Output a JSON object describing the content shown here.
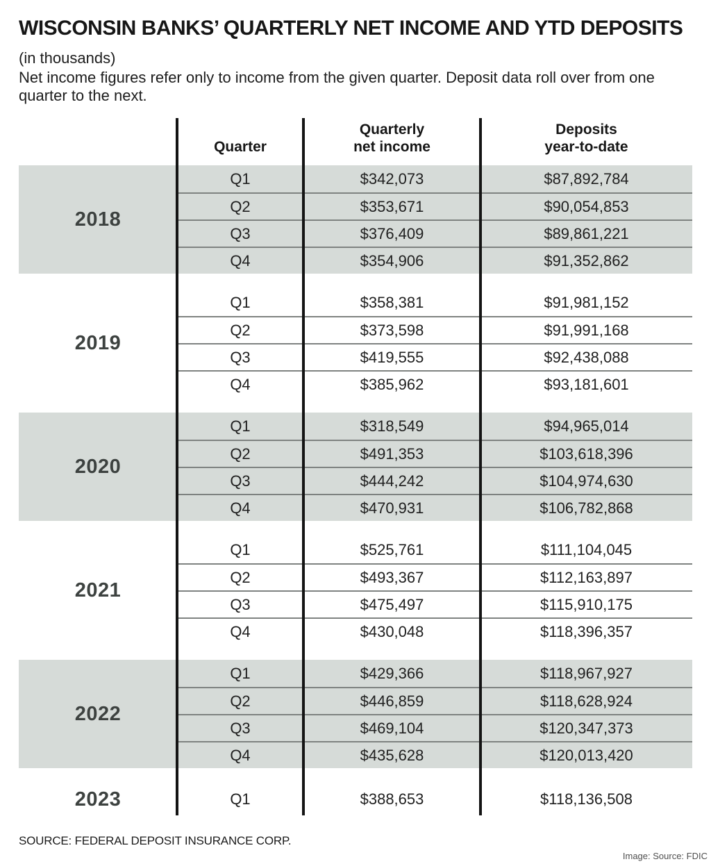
{
  "title": "WISCONSIN BANKS’ QUARTERLY NET INCOME AND YTD DEPOSITS",
  "units_note": "(in thousands)",
  "description": "Net income figures refer only to income from the given quarter. Deposit data roll over from one quarter to the next.",
  "source_note": "SOURCE: FEDERAL DEPOSIT INSURANCE CORP.",
  "image_credit": "Image: Source: FDIC",
  "colors": {
    "shade": "#d6dbd8",
    "divider": "#141414",
    "row_separator": "#7e8280",
    "year_text": "#3d4240"
  },
  "header": {
    "quarter": "Quarter",
    "net_income_line1": "Quarterly",
    "net_income_line2": "net income",
    "deposits_line1": "Deposits",
    "deposits_line2": "year-to-date"
  },
  "chart_data": {
    "type": "table",
    "title": "WISCONSIN BANKS’ QUARTERLY NET INCOME AND YTD DEPOSITS",
    "units": "in thousands",
    "columns": [
      "Quarter",
      "Quarterly net income",
      "Deposits year-to-date"
    ],
    "layout": {
      "shaded_years": [
        "2018",
        "2020",
        "2022"
      ],
      "unshaded_years": [
        "2019",
        "2021",
        "2023"
      ]
    },
    "groups": [
      {
        "year": "2018",
        "rows": [
          {
            "quarter": "Q1",
            "net_income": "$342,073",
            "deposits_ytd": "$87,892,784"
          },
          {
            "quarter": "Q2",
            "net_income": "$353,671",
            "deposits_ytd": "$90,054,853"
          },
          {
            "quarter": "Q3",
            "net_income": "$376,409",
            "deposits_ytd": "$89,861,221"
          },
          {
            "quarter": "Q4",
            "net_income": "$354,906",
            "deposits_ytd": "$91,352,862"
          }
        ]
      },
      {
        "year": "2019",
        "rows": [
          {
            "quarter": "Q1",
            "net_income": "$358,381",
            "deposits_ytd": "$91,981,152"
          },
          {
            "quarter": "Q2",
            "net_income": "$373,598",
            "deposits_ytd": "$91,991,168"
          },
          {
            "quarter": "Q3",
            "net_income": "$419,555",
            "deposits_ytd": "$92,438,088"
          },
          {
            "quarter": "Q4",
            "net_income": "$385,962",
            "deposits_ytd": "$93,181,601"
          }
        ]
      },
      {
        "year": "2020",
        "rows": [
          {
            "quarter": "Q1",
            "net_income": "$318,549",
            "deposits_ytd": "$94,965,014"
          },
          {
            "quarter": "Q2",
            "net_income": "$491,353",
            "deposits_ytd": "$103,618,396"
          },
          {
            "quarter": "Q3",
            "net_income": "$444,242",
            "deposits_ytd": "$104,974,630"
          },
          {
            "quarter": "Q4",
            "net_income": "$470,931",
            "deposits_ytd": "$106,782,868"
          }
        ]
      },
      {
        "year": "2021",
        "rows": [
          {
            "quarter": "Q1",
            "net_income": "$525,761",
            "deposits_ytd": "$111,104,045"
          },
          {
            "quarter": "Q2",
            "net_income": "$493,367",
            "deposits_ytd": "$112,163,897"
          },
          {
            "quarter": "Q3",
            "net_income": "$475,497",
            "deposits_ytd": "$115,910,175"
          },
          {
            "quarter": "Q4",
            "net_income": "$430,048",
            "deposits_ytd": "$118,396,357"
          }
        ]
      },
      {
        "year": "2022",
        "rows": [
          {
            "quarter": "Q1",
            "net_income": "$429,366",
            "deposits_ytd": "$118,967,927"
          },
          {
            "quarter": "Q2",
            "net_income": "$446,859",
            "deposits_ytd": "$118,628,924"
          },
          {
            "quarter": "Q3",
            "net_income": "$469,104",
            "deposits_ytd": "$120,347,373"
          },
          {
            "quarter": "Q4",
            "net_income": "$435,628",
            "deposits_ytd": "$120,013,420"
          }
        ]
      },
      {
        "year": "2023",
        "rows": [
          {
            "quarter": "Q1",
            "net_income": "$388,653",
            "deposits_ytd": "$118,136,508"
          }
        ]
      }
    ]
  }
}
